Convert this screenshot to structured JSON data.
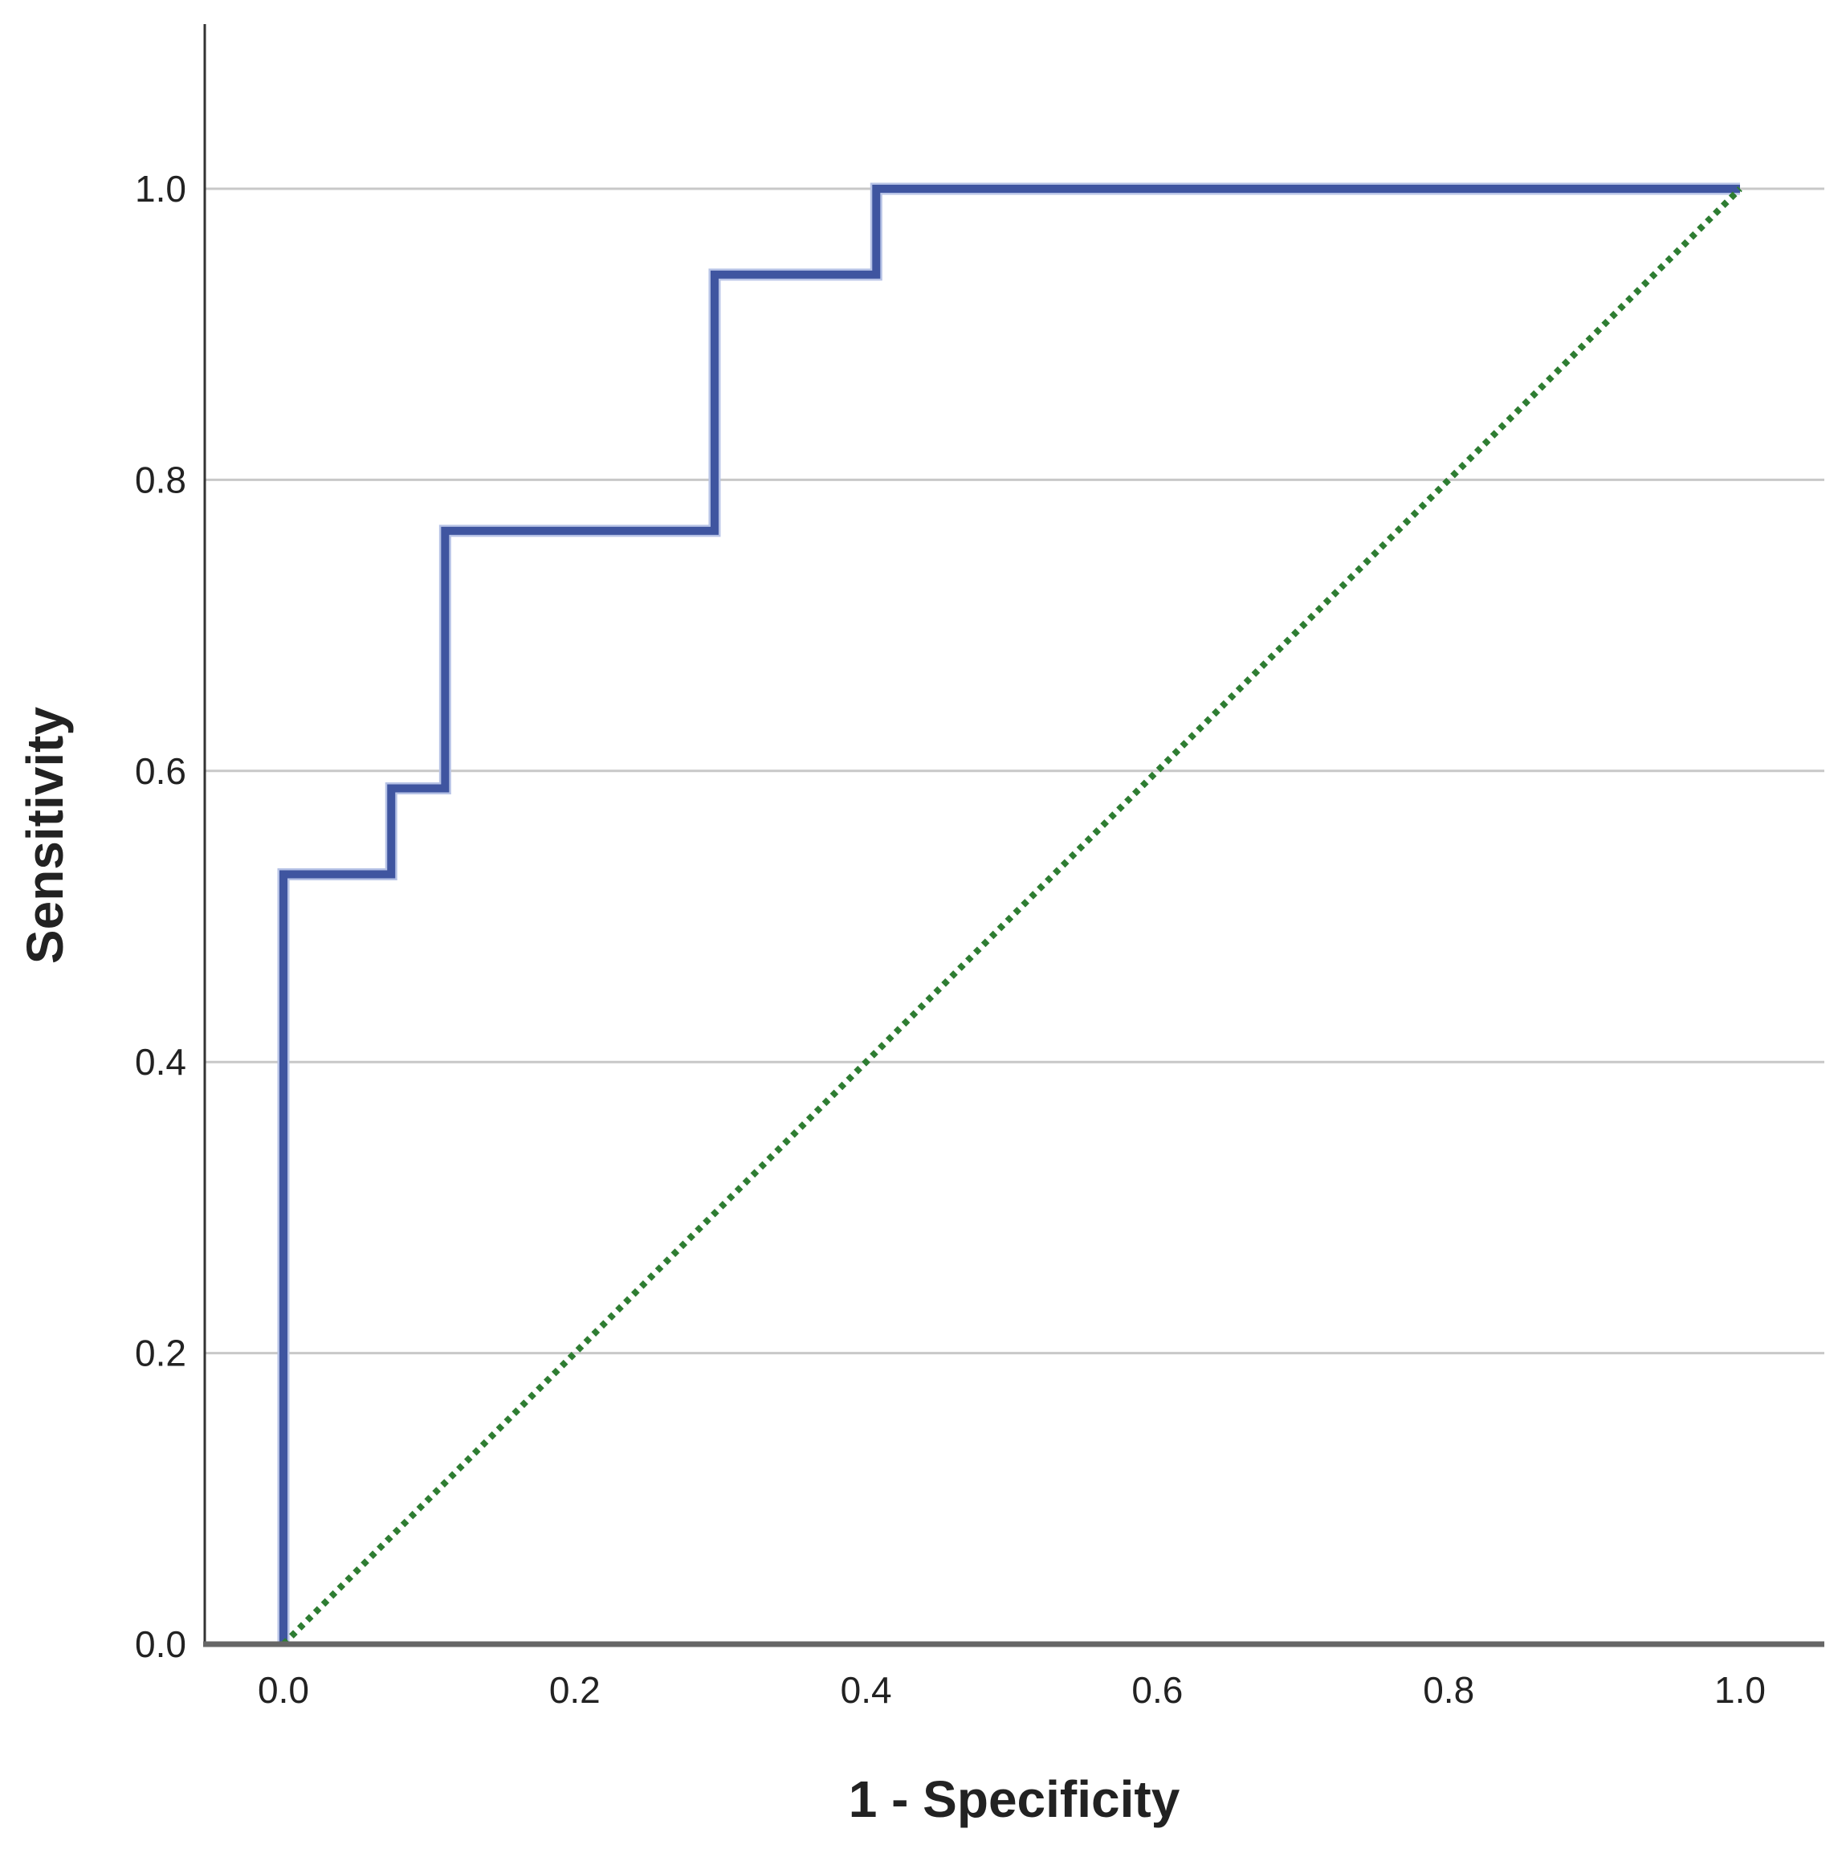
{
  "chart_data": {
    "type": "line",
    "title": "",
    "xlabel": "1 - Specificity",
    "ylabel": "Sensitivity",
    "xlim": [
      -0.055,
      1.06
    ],
    "ylim": [
      0.0,
      1.11
    ],
    "x_ticks": [
      "0.0",
      "0.2",
      "0.4",
      "0.6",
      "0.8",
      "1.0"
    ],
    "y_ticks": [
      "0.0",
      "0.2",
      "0.4",
      "0.6",
      "0.8",
      "1.0"
    ],
    "grid": "horizontal",
    "legend": "none",
    "series": [
      {
        "style": "step",
        "color": "#3F55A0",
        "points": [
          [
            0.0,
            0.0
          ],
          [
            0.0,
            0.529
          ],
          [
            0.074,
            0.529
          ],
          [
            0.074,
            0.588
          ],
          [
            0.111,
            0.588
          ],
          [
            0.111,
            0.765
          ],
          [
            0.296,
            0.765
          ],
          [
            0.296,
            0.941
          ],
          [
            0.407,
            0.941
          ],
          [
            0.407,
            1.0
          ],
          [
            1.0,
            1.0
          ]
        ]
      },
      {
        "style": "dotted",
        "color": "#2E7D32",
        "points": [
          [
            0.0,
            0.0
          ],
          [
            1.0,
            1.0
          ]
        ]
      }
    ]
  }
}
